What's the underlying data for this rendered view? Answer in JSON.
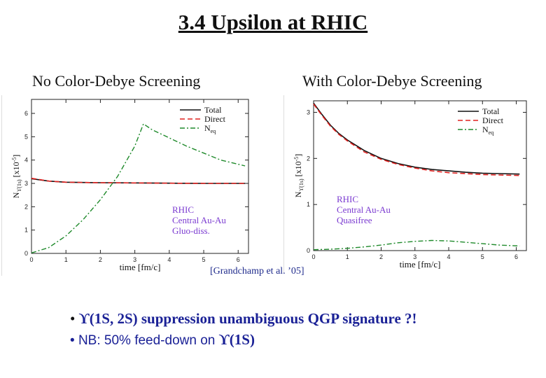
{
  "slide": {
    "title": "3.4 Upsilon at RHIC",
    "left_heading": "No Color-Debye Screening",
    "right_heading": "With Color-Debye Screening",
    "citation": "[Grandchamp et al. ’05]",
    "bullet1_marker": "•",
    "bullet1_symbol": "ϒ(1S, 2S)",
    "bullet1_text": " suppression unambiguous QGP signature ?!",
    "bullet2_marker": "•",
    "bullet2_text": "NB: 50% feed-down on ",
    "bullet2_symbol": "ϒ(1S)"
  },
  "colors": {
    "total": "#111111",
    "direct": "#e0201e",
    "neq": "#1f8a2b",
    "annotation": "#7b3bd1",
    "bullet_text": "#1a2196"
  },
  "chart_data": [
    {
      "type": "line",
      "xlabel": "time [fm/c]",
      "ylabel": "N_ϒ(1s) [x10^-5]",
      "ylabel_main": "N",
      "ylabel_sub": "ϒ(1s)",
      "ylabel_unit": "[x10",
      "ylabel_exp": "-5",
      "ylabel_close": "]",
      "xlim": [
        0,
        6.3
      ],
      "ylim": [
        0,
        6.6
      ],
      "xticks": [
        0,
        1,
        2,
        3,
        4,
        5,
        6
      ],
      "yticks": [
        0,
        1,
        2,
        3,
        4,
        5,
        6
      ],
      "legend_position": "top-right",
      "annotation": [
        "RHIC",
        "Central Au-Au",
        "Gluo-diss."
      ],
      "series": [
        {
          "name": "Total",
          "x": [
            0,
            0.5,
            1,
            2,
            3,
            4,
            5,
            6.2
          ],
          "y": [
            3.2,
            3.1,
            3.05,
            3.03,
            3.02,
            3.01,
            3.0,
            3.0
          ]
        },
        {
          "name": "Direct",
          "x": [
            0,
            0.5,
            1,
            2,
            3,
            4,
            5,
            6.2
          ],
          "y": [
            3.22,
            3.1,
            3.05,
            3.03,
            3.02,
            3.01,
            3.0,
            3.0
          ]
        },
        {
          "name": "N_eq",
          "legend_main": "N",
          "legend_sub": "eq",
          "x": [
            0,
            0.5,
            1,
            1.5,
            2,
            2.5,
            3,
            3.25,
            3.5,
            4,
            4.5,
            5,
            5.5,
            6.2
          ],
          "y": [
            0.02,
            0.25,
            0.75,
            1.45,
            2.3,
            3.3,
            4.6,
            5.55,
            5.3,
            4.95,
            4.6,
            4.3,
            4.0,
            3.75
          ]
        }
      ]
    },
    {
      "type": "line",
      "xlabel": "time [fm/c]",
      "ylabel": "N_ϒ(1s) [x10^-5]",
      "ylabel_main": "N",
      "ylabel_sub": "ϒ(1s)",
      "ylabel_unit": "[x10",
      "ylabel_exp": "-5",
      "ylabel_close": "]",
      "xlim": [
        0,
        6.3
      ],
      "ylim": [
        0,
        3.25
      ],
      "xticks": [
        0,
        1,
        2,
        3,
        4,
        5,
        6
      ],
      "yticks": [
        0,
        1,
        2,
        3
      ],
      "legend_position": "top-right",
      "annotation": [
        "RHIC",
        "Central Au-Au",
        "Quasifree"
      ],
      "series": [
        {
          "name": "Total",
          "x": [
            0,
            0.25,
            0.5,
            0.75,
            1,
            1.5,
            2,
            2.5,
            3,
            3.5,
            4,
            4.5,
            5,
            5.5,
            6.1
          ],
          "y": [
            3.2,
            2.95,
            2.72,
            2.54,
            2.4,
            2.17,
            2.0,
            1.89,
            1.81,
            1.76,
            1.73,
            1.7,
            1.68,
            1.67,
            1.66
          ]
        },
        {
          "name": "Direct",
          "x": [
            0,
            0.25,
            0.5,
            0.75,
            1,
            1.5,
            2,
            2.5,
            3,
            3.5,
            4,
            4.5,
            5,
            5.5,
            6.1
          ],
          "y": [
            3.18,
            2.93,
            2.7,
            2.52,
            2.38,
            2.14,
            1.98,
            1.87,
            1.79,
            1.73,
            1.69,
            1.67,
            1.65,
            1.64,
            1.63
          ]
        },
        {
          "name": "N_eq",
          "legend_main": "N",
          "legend_sub": "eq",
          "x": [
            0,
            0.5,
            1,
            1.5,
            2,
            2.5,
            3,
            3.5,
            4,
            4.5,
            5,
            5.5,
            6.1
          ],
          "y": [
            0.02,
            0.03,
            0.05,
            0.08,
            0.12,
            0.17,
            0.2,
            0.22,
            0.21,
            0.18,
            0.15,
            0.12,
            0.1
          ]
        }
      ]
    }
  ]
}
